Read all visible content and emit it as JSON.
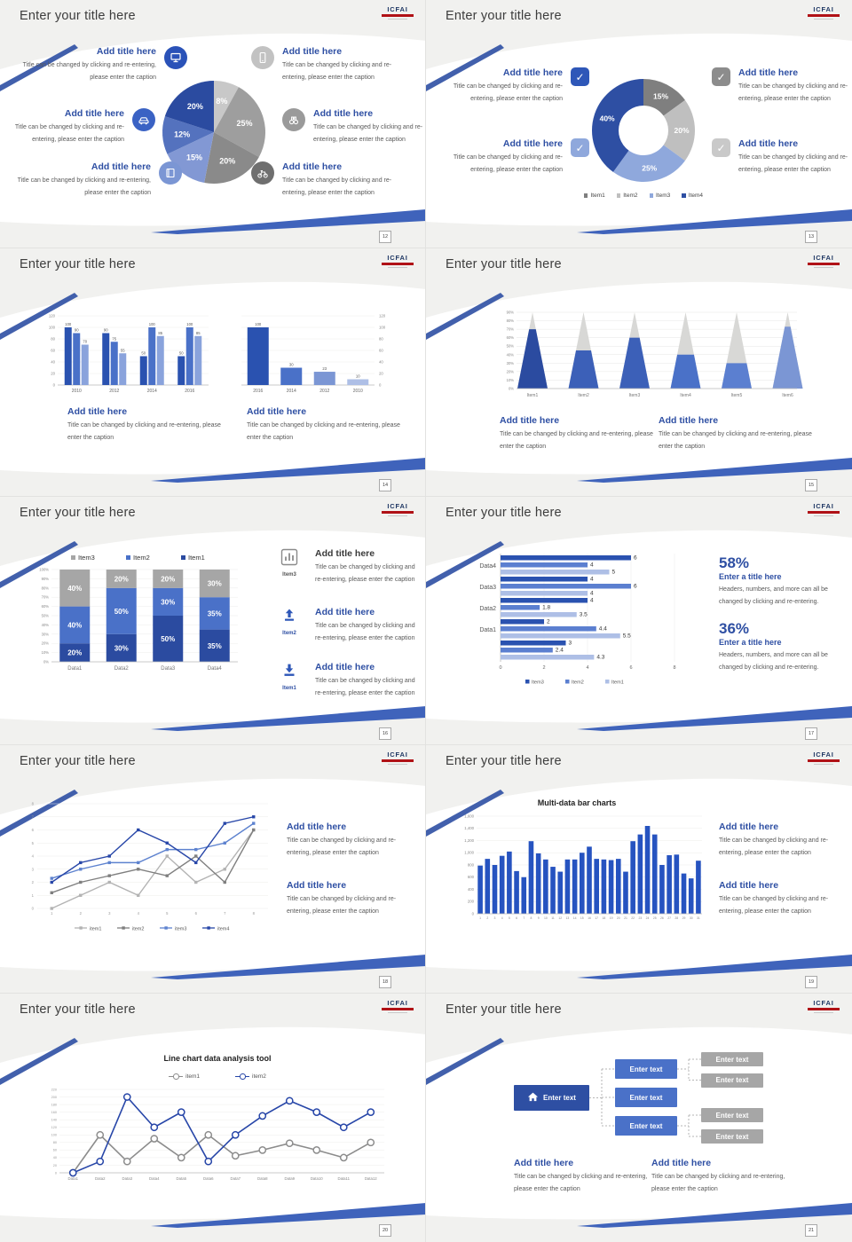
{
  "strings": {
    "slide_title": "Enter your title here",
    "logo_text": "ICFAI",
    "add_title": "Add title here",
    "caption": "Title can be changed by clicking and re-entering, please enter the caption",
    "enter_title": "Enter a title here",
    "stat_caption": "Headers, numbers, and more can all be changed by clicking and re-entering.",
    "enter_text": "Enter text",
    "check": "✓"
  },
  "colors": {
    "accent": "#2e4fa3",
    "blue_mid": "#4a71c8",
    "blue_light": "#8aa3dc",
    "gray_dark": "#7f7f7f",
    "gray_mid": "#a6a6a6",
    "gray_light": "#bfbfbf",
    "logo_red": "#b01116"
  },
  "pages": [
    "12",
    "13",
    "14",
    "15",
    "16",
    "17",
    "18",
    "19",
    "20",
    "21"
  ],
  "stats": {
    "v1": "58%",
    "v2": "36%"
  },
  "slide1_icons": {
    "monitor": "#2a52b8",
    "car": "#3a62c4",
    "book": "#7b96d4",
    "phone": "#c2c2c2",
    "binoculars": "#9a9a9a",
    "bicycle": "#6f6f6f"
  },
  "slide2_checks": {
    "cb1": "#2e57b8",
    "cb2": "#8fa8dc",
    "cb3": "#8c8c8c",
    "cb4": "#c9c9c9"
  },
  "chart_data": [
    {
      "slide": 1,
      "type": "pie",
      "labels": [
        "8%",
        "25%",
        "20%",
        "15%",
        "12%",
        "20%"
      ],
      "values": [
        8,
        25,
        20,
        15,
        12,
        20
      ],
      "colors": [
        "#c8c8c8",
        "#9e9e9e",
        "#8a8a8a",
        "#8298d4",
        "#5472be",
        "#2b4ba0"
      ]
    },
    {
      "slide": 2,
      "type": "donut",
      "labels": [
        "15%",
        "20%",
        "25%",
        "40%"
      ],
      "values": [
        15,
        20,
        25,
        40
      ],
      "colors": [
        "#7f7f7f",
        "#bfbfbf",
        "#8fa8dc",
        "#2e4fa3"
      ],
      "legend": [
        "Item1",
        "Item2",
        "Item3",
        "Item4"
      ]
    },
    {
      "slide": 3,
      "type": "bar-grouped",
      "categories": [
        "2010",
        "2012",
        "2014",
        "2016"
      ],
      "ymax": 120,
      "ystep": 20,
      "series": [
        {
          "color": "#2a52b0",
          "values": [
            100,
            90,
            50,
            50
          ]
        },
        {
          "color": "#4a71c8",
          "values": [
            90,
            75,
            100,
            100
          ]
        },
        {
          "color": "#8aa3dc",
          "values": [
            70,
            55,
            85,
            85
          ]
        }
      ]
    },
    {
      "slide": 3,
      "type": "bar-simple",
      "categories": [
        "2016",
        "2014",
        "2012",
        "2010"
      ],
      "ymax": 120,
      "ystep": 20,
      "values": [
        100,
        30,
        23,
        10
      ],
      "colors": [
        "#2a52b0",
        "#4a71c8",
        "#7b96d4",
        "#aebfe6"
      ]
    },
    {
      "slide": 4,
      "type": "cone",
      "categories": [
        "Item1",
        "Item2",
        "Item3",
        "Item4",
        "Item5",
        "Item6"
      ],
      "ymax": 90,
      "ystep": 10,
      "values": [
        70,
        45,
        60,
        40,
        30,
        73
      ],
      "colors": [
        "#2b4ba0",
        "#3c60b8",
        "#3c60b8",
        "#4a71c8",
        "#5b7fd0",
        "#7b96d4"
      ]
    },
    {
      "slide": 5,
      "type": "bar-stacked",
      "categories": [
        "Data1",
        "Data2",
        "Data3",
        "Data4"
      ],
      "legend": [
        {
          "label": "Item3",
          "color": "#a6a6a6"
        },
        {
          "label": "Item2",
          "color": "#4a71c8"
        },
        {
          "label": "Item1",
          "color": "#2b4ba0"
        }
      ],
      "series": [
        {
          "name": "Item1",
          "color": "#2b4ba0",
          "values": [
            20,
            30,
            50,
            35
          ]
        },
        {
          "name": "Item2",
          "color": "#4a71c8",
          "values": [
            40,
            50,
            30,
            35
          ]
        },
        {
          "name": "Item3",
          "color": "#a6a6a6",
          "values": [
            40,
            20,
            20,
            30
          ]
        }
      ]
    },
    {
      "slide": 6,
      "type": "bar-h",
      "groups": [
        "Data4",
        "Data3",
        "Data2",
        "Data1",
        ""
      ],
      "xmax": 8,
      "xstep": 2,
      "legend": [
        {
          "label": "Item3",
          "color": "#2a52b0"
        },
        {
          "label": "Item2",
          "color": "#5b7fd0"
        },
        {
          "label": "Item1",
          "color": "#aebfe6"
        }
      ],
      "rows": [
        [
          6,
          4,
          5
        ],
        [
          4,
          6,
          4
        ],
        [
          4,
          1.8,
          3.5
        ],
        [
          2,
          4.4,
          5.5
        ],
        [
          3,
          2.4,
          4.3
        ]
      ]
    },
    {
      "slide": 7,
      "type": "line",
      "x": [
        1,
        2,
        3,
        4,
        5,
        6,
        7,
        8
      ],
      "ymax": 8,
      "ystep": 1,
      "series": [
        {
          "name": "item1",
          "color": "#b3b3b3",
          "values": [
            0,
            1,
            2,
            1,
            4,
            2,
            3,
            6
          ]
        },
        {
          "name": "item2",
          "color": "#7f7f7f",
          "values": [
            1.2,
            2,
            2.5,
            3,
            2.5,
            4,
            2,
            6
          ]
        },
        {
          "name": "item3",
          "color": "#5d82cf",
          "values": [
            2.3,
            3,
            3.5,
            3.5,
            4.5,
            4.5,
            5,
            6.5
          ]
        },
        {
          "name": "item4",
          "color": "#2746a8",
          "values": [
            2,
            3.5,
            4,
            6,
            5,
            3.5,
            6.5,
            7
          ]
        }
      ]
    },
    {
      "slide": 8,
      "type": "bar-many",
      "title": "Multi-data bar charts",
      "color": "#2653c0",
      "ymax": 1600,
      "ystep": 200,
      "values": [
        790,
        900,
        800,
        950,
        1020,
        700,
        600,
        1190,
        990,
        890,
        770,
        690,
        890,
        890,
        1000,
        1100,
        900,
        890,
        880,
        900,
        690,
        1190,
        1300,
        1440,
        1300,
        800,
        960,
        970,
        660,
        580,
        870
      ]
    },
    {
      "slide": 9,
      "type": "line-circles",
      "title": "Line chart data analysis tool",
      "categories": [
        "Data1",
        "Data2",
        "Data3",
        "Data4",
        "Data5",
        "Data6",
        "Data7",
        "Data8",
        "Data9",
        "Data10",
        "Data11",
        "Data12"
      ],
      "ymax": 220,
      "ystep": 20,
      "series": [
        {
          "name": "item1",
          "color": "#8c8c8c",
          "values": [
            0,
            100,
            30,
            90,
            40,
            100,
            45,
            60,
            78,
            60,
            40,
            80
          ]
        },
        {
          "name": "item2",
          "color": "#2746a8",
          "values": [
            0,
            30,
            200,
            120,
            160,
            30,
            100,
            150,
            190,
            160,
            120,
            160
          ]
        }
      ]
    }
  ],
  "diagram": {
    "root": "Enter text",
    "mid": [
      "Enter text",
      "Enter text",
      "Enter text"
    ],
    "leaf": [
      "Enter text",
      "Enter text",
      "Enter text",
      "Enter text"
    ],
    "colors": {
      "root": "#2e4fa3",
      "mid": "#4a71c8",
      "leaf": "#a6a6a6"
    }
  }
}
